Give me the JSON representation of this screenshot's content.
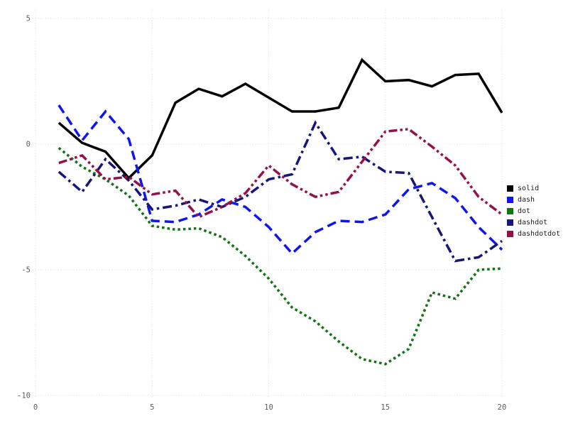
{
  "chart_data": {
    "type": "line",
    "title": "",
    "xlabel": "",
    "ylabel": "",
    "xlim": [
      0,
      20
    ],
    "ylim": [
      -10,
      5
    ],
    "x_ticks": [
      0,
      5,
      10,
      15,
      20
    ],
    "y_ticks": [
      5,
      0,
      -5,
      -10
    ],
    "grid": "dotted",
    "grid_color": "#dadada",
    "tick_label_color": "#605c59",
    "legend_position": "right-outside",
    "x": [
      1,
      2,
      3,
      4,
      5,
      6,
      7,
      8,
      9,
      10,
      11,
      12,
      13,
      14,
      15,
      16,
      17,
      18,
      19,
      20
    ],
    "series": [
      {
        "name": "solid",
        "color": "#000000",
        "dash_style": "solid",
        "values": [
          0.85,
          0.05,
          -0.3,
          -1.35,
          -0.45,
          1.65,
          2.2,
          1.9,
          2.4,
          1.85,
          1.3,
          1.3,
          1.45,
          3.35,
          2.5,
          2.55,
          2.3,
          2.75,
          2.8,
          1.25
        ]
      },
      {
        "name": "dash",
        "color": "#0e16ee",
        "dash_style": "dash",
        "values": [
          1.55,
          0.15,
          1.3,
          0.2,
          -3.05,
          -3.1,
          -2.8,
          -2.2,
          -2.5,
          -3.3,
          -4.35,
          -3.5,
          -3.05,
          -3.1,
          -2.8,
          -1.8,
          -1.55,
          -2.15,
          -3.3,
          -4.2
        ]
      },
      {
        "name": "dot",
        "color": "#107410",
        "dash_style": "dot",
        "values": [
          -0.15,
          -0.9,
          -1.4,
          -2.05,
          -3.25,
          -3.4,
          -3.35,
          -3.7,
          -4.45,
          -5.35,
          -6.5,
          -7.05,
          -7.85,
          -8.55,
          -8.75,
          -8.15,
          -5.9,
          -6.15,
          -5.0,
          -4.95
        ]
      },
      {
        "name": "dashdot",
        "color": "#16167a",
        "dash_style": "dashdot",
        "values": [
          -1.1,
          -1.9,
          -0.6,
          -1.45,
          -2.6,
          -2.45,
          -2.2,
          -2.5,
          -2.1,
          -1.4,
          -1.2,
          0.85,
          -0.6,
          -0.5,
          -1.1,
          -1.15,
          -2.9,
          -4.65,
          -4.5,
          -3.85
        ]
      },
      {
        "name": "dashdotdot",
        "color": "#93124c",
        "dash_style": "dashdotdot",
        "values": [
          -0.75,
          -0.45,
          -1.4,
          -1.3,
          -2.0,
          -1.85,
          -2.9,
          -2.5,
          -1.95,
          -0.85,
          -1.6,
          -2.1,
          -1.9,
          -0.7,
          0.5,
          0.6,
          -0.1,
          -0.85,
          -2.1,
          -2.8
        ]
      }
    ],
    "legend_entries": [
      "solid",
      "dash",
      "dot",
      "dashdot",
      "dashdotdot"
    ]
  }
}
